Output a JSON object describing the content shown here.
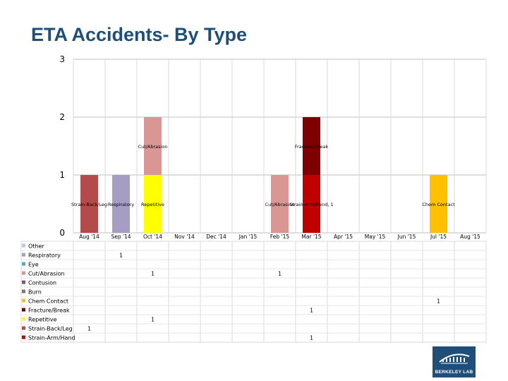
{
  "title": "ETA Accidents- By Type",
  "logo": {
    "text": "BERKELEY LAB"
  },
  "chart_data": {
    "type": "bar",
    "stacked": true,
    "title": "ETA Accidents- By Type",
    "xlabel": "",
    "ylabel": "",
    "ylim": [
      0,
      3
    ],
    "yticks": [
      0,
      1,
      2,
      3
    ],
    "grid": true,
    "categories": [
      "Aug '14",
      "Sep '14",
      "Oct '14",
      "Nov '14",
      "Dec '14",
      "Jan '15",
      "Feb '15",
      "Mar '15",
      "Apr '15",
      "May '15",
      "Jun '15",
      "Jul '15",
      "Aug '15"
    ],
    "series": [
      {
        "name": "Other",
        "color": "#b4c7e7",
        "values": [
          0,
          0,
          0,
          0,
          0,
          0,
          0,
          0,
          0,
          0,
          0,
          0,
          0
        ]
      },
      {
        "name": "Respiratory",
        "color": "#a59dc4",
        "values": [
          0,
          1,
          0,
          0,
          0,
          0,
          0,
          0,
          0,
          0,
          0,
          0,
          0
        ]
      },
      {
        "name": "Eye",
        "color": "#4bacc6",
        "values": [
          0,
          0,
          0,
          0,
          0,
          0,
          0,
          0,
          0,
          0,
          0,
          0,
          0
        ]
      },
      {
        "name": "Cut/Abrasion",
        "color": "#d99694",
        "values": [
          0,
          0,
          1,
          0,
          0,
          0,
          1,
          0,
          0,
          0,
          0,
          0,
          0
        ]
      },
      {
        "name": "Contusion",
        "color": "#7f4f9f",
        "values": [
          0,
          0,
          0,
          0,
          0,
          0,
          0,
          0,
          0,
          0,
          0,
          0,
          0
        ]
      },
      {
        "name": "Burn",
        "color": "#8c7062",
        "values": [
          0,
          0,
          0,
          0,
          0,
          0,
          0,
          0,
          0,
          0,
          0,
          0,
          0
        ]
      },
      {
        "name": "Chem Contact",
        "color": "#ffc000",
        "values": [
          0,
          0,
          0,
          0,
          0,
          0,
          0,
          0,
          0,
          0,
          0,
          1,
          0
        ]
      },
      {
        "name": "Fracture/Break",
        "color": "#7f0000",
        "values": [
          0,
          0,
          0,
          0,
          0,
          0,
          0,
          1,
          0,
          0,
          0,
          0,
          0
        ]
      },
      {
        "name": "Repetitive",
        "color": "#ffff00",
        "values": [
          0,
          0,
          1,
          0,
          0,
          0,
          0,
          0,
          0,
          0,
          0,
          0,
          0
        ]
      },
      {
        "name": "Strain-Back/Leg",
        "color": "#b54a4a",
        "values": [
          1,
          0,
          0,
          0,
          0,
          0,
          0,
          0,
          0,
          0,
          0,
          0,
          0
        ]
      },
      {
        "name": "Strain-Arm/Hand",
        "color": "#c00000",
        "values": [
          0,
          0,
          0,
          0,
          0,
          0,
          0,
          1,
          0,
          0,
          0,
          0,
          0
        ]
      }
    ],
    "stack_order": [
      "Strain-Back/Leg",
      "Respiratory",
      "Repetitive",
      "Cut/Abrasion",
      "Strain-Arm/Hand",
      "Fracture/Break",
      "Chem Contact"
    ],
    "bar_labels": [
      {
        "text": "Strain-Back/Leg",
        "category": "Aug '14",
        "series": "Strain-Back/Leg"
      },
      {
        "text": "Respiratory",
        "category": "Sep '14",
        "series": "Respiratory"
      },
      {
        "text": "Repetitive",
        "category": "Oct '14",
        "series": "Repetitive"
      },
      {
        "text": "Cut/Abrasion",
        "category": "Oct '14",
        "series": "Cut/Abrasion"
      },
      {
        "text": "Cut/Abrasion",
        "category": "Feb '15",
        "series": "Cut/Abrasion"
      },
      {
        "text": "Strain-Arm/Hand, 1",
        "category": "Mar '15",
        "series": "Strain-Arm/Hand"
      },
      {
        "text": "Fracture/Break",
        "category": "Mar '15",
        "series": "Fracture/Break"
      },
      {
        "text": "Chem Contact",
        "category": "Jul '15",
        "series": "Chem Contact"
      }
    ]
  }
}
